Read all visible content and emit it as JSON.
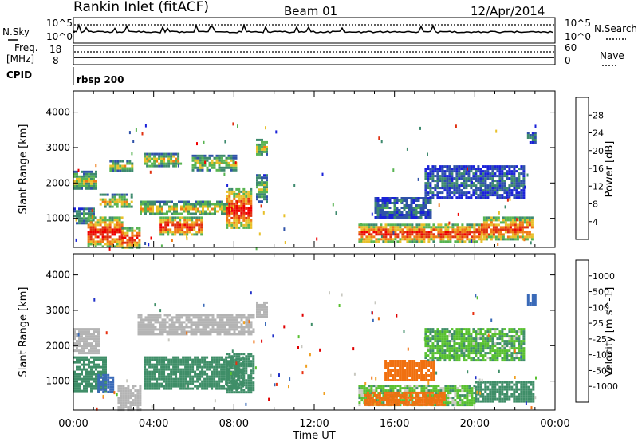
{
  "header": {
    "title": "Rankin Inlet (fitACF)",
    "beam": "Beam 01",
    "date": "12/Apr/2014"
  },
  "top_panels": {
    "nsky_label": "N.Sky",
    "nsearch_label": "N.Search",
    "noise_ticks_left": [
      "10^5",
      "10^0"
    ],
    "noise_ticks_right": [
      "10^5",
      "10^0"
    ],
    "freq_label_1": "Freq.",
    "freq_label_2": "[MHz]",
    "freq_ticks": [
      "18",
      "8"
    ],
    "nave_label": "Nave",
    "nave_ticks": [
      "60",
      "0"
    ],
    "cpid_label": "CPID",
    "cpid_value": "rbsp 200"
  },
  "colors": {
    "power_scale": [
      "#1a22d8",
      "#2f52a8",
      "#3e8a6e",
      "#58b452",
      "#e8c02a",
      "#f07a14",
      "#e03010",
      "#f00000"
    ],
    "velocity_scale": [
      "#2030c8",
      "#3a6ab8",
      "#3f8e68",
      "#58c030",
      "#c8c8c0",
      "#f0a020",
      "#f07010",
      "#e83010",
      "#e00000"
    ],
    "ground_scatter": "#b4b4b4"
  },
  "chart_data": [
    {
      "type": "heatmap",
      "name": "power",
      "xlabel": "Time UT",
      "ylabel": "Slant Range [km]",
      "xticks": [
        "00:00",
        "04:00",
        "08:00",
        "12:00",
        "16:00",
        "20:00",
        "00:00"
      ],
      "xlim_hours": [
        0,
        24
      ],
      "ylim": [
        180,
        4600
      ],
      "yticks": [
        1000,
        2000,
        3000,
        4000
      ],
      "colorbar_label": "Power [dB]",
      "colorbar_ticks": [
        "4",
        "8",
        "12",
        "16",
        "20",
        "24",
        "28"
      ],
      "colorbar_range": [
        0,
        30
      ],
      "regions": [
        {
          "t": [
            0.0,
            1.1
          ],
          "r": [
            1850,
            2350
          ],
          "lvl": 0.55
        },
        {
          "t": [
            0.0,
            1.0
          ],
          "r": [
            850,
            1300
          ],
          "lvl": 0.4
        },
        {
          "t": [
            0.7,
            2.4
          ],
          "r": [
            180,
            1050
          ],
          "lvl": 0.92
        },
        {
          "t": [
            2.4,
            3.3
          ],
          "r": [
            180,
            750
          ],
          "lvl": 0.9
        },
        {
          "t": [
            1.3,
            2.9
          ],
          "r": [
            1300,
            1700
          ],
          "lvl": 0.6
        },
        {
          "t": [
            1.8,
            2.9
          ],
          "r": [
            2350,
            2650
          ],
          "lvl": 0.55
        },
        {
          "t": [
            3.5,
            5.4
          ],
          "r": [
            2500,
            2850
          ],
          "lvl": 0.6
        },
        {
          "t": [
            5.9,
            8.1
          ],
          "r": [
            2350,
            2800
          ],
          "lvl": 0.55
        },
        {
          "t": [
            3.3,
            7.8
          ],
          "r": [
            1100,
            1500
          ],
          "lvl": 0.6
        },
        {
          "t": [
            4.3,
            6.4
          ],
          "r": [
            550,
            1050
          ],
          "lvl": 0.9
        },
        {
          "t": [
            7.6,
            8.9
          ],
          "r": [
            700,
            1850
          ],
          "lvl": 0.92
        },
        {
          "t": [
            9.1,
            9.6
          ],
          "r": [
            2800,
            3250
          ],
          "lvl": 0.55
        },
        {
          "t": [
            9.1,
            9.6
          ],
          "r": [
            1500,
            2250
          ],
          "lvl": 0.45
        },
        {
          "t": [
            14.2,
            20.3
          ],
          "r": [
            350,
            850
          ],
          "lvl": 0.9
        },
        {
          "t": [
            20.3,
            22.9
          ],
          "r": [
            400,
            1050
          ],
          "lvl": 0.85
        },
        {
          "t": [
            15.0,
            17.8
          ],
          "r": [
            1050,
            1600
          ],
          "lvl": 0.3
        },
        {
          "t": [
            17.5,
            22.5
          ],
          "r": [
            1600,
            2500
          ],
          "lvl": 0.25
        },
        {
          "t": [
            22.6,
            23.0
          ],
          "r": [
            3150,
            3450
          ],
          "lvl": 0.3
        }
      ]
    },
    {
      "type": "heatmap",
      "name": "velocity",
      "xlabel": "Time UT",
      "ylabel": "Slant Range [km]",
      "xticks": [
        "00:00",
        "04:00",
        "08:00",
        "12:00",
        "16:00",
        "20:00",
        "00:00"
      ],
      "xlim_hours": [
        0,
        24
      ],
      "ylim": [
        180,
        4600
      ],
      "yticks": [
        1000,
        2000,
        3000,
        4000
      ],
      "colorbar_label": "Velocity [m s^-1]",
      "colorbar_ticks": [
        "1000",
        "500",
        "100",
        "25",
        "-25",
        "-100",
        "-500",
        "-1000"
      ],
      "regions": [
        {
          "t": [
            0.0,
            1.2
          ],
          "r": [
            1800,
            2500
          ],
          "v": 0
        },
        {
          "t": [
            3.2,
            9.0
          ],
          "r": [
            2350,
            2900
          ],
          "v": 0
        },
        {
          "t": [
            0.0,
            1.6
          ],
          "r": [
            700,
            1700
          ],
          "v": 250
        },
        {
          "t": [
            1.2,
            2.0
          ],
          "r": [
            700,
            1200
          ],
          "v": 800
        },
        {
          "t": [
            2.2,
            3.3
          ],
          "r": [
            180,
            900
          ],
          "v": 0
        },
        {
          "t": [
            3.5,
            8.5
          ],
          "r": [
            800,
            1700
          ],
          "v": 250
        },
        {
          "t": [
            7.6,
            9.0
          ],
          "r": [
            700,
            1800
          ],
          "v": 250
        },
        {
          "t": [
            9.1,
            9.6
          ],
          "r": [
            2800,
            3250
          ],
          "v": 0
        },
        {
          "t": [
            14.2,
            20.0
          ],
          "r": [
            300,
            900
          ],
          "v": 60
        },
        {
          "t": [
            14.5,
            18.5
          ],
          "r": [
            350,
            700
          ],
          "v": -300
        },
        {
          "t": [
            20.0,
            22.9
          ],
          "r": [
            400,
            1000
          ],
          "v": 250
        },
        {
          "t": [
            15.5,
            18.0
          ],
          "r": [
            1050,
            1600
          ],
          "v": -300
        },
        {
          "t": [
            17.5,
            22.5
          ],
          "r": [
            1600,
            2500
          ],
          "v": 80
        },
        {
          "t": [
            22.6,
            23.0
          ],
          "r": [
            3150,
            3450
          ],
          "v": 700
        }
      ]
    }
  ]
}
